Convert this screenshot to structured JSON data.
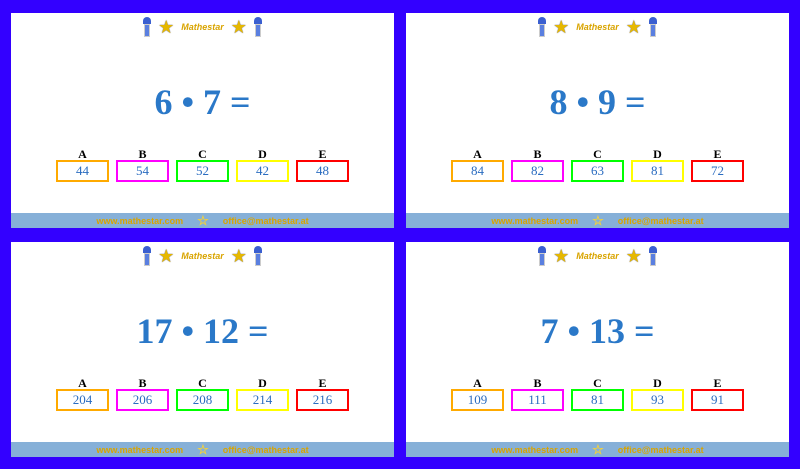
{
  "brand": "Mathestar",
  "footer": {
    "website": "www.mathestar.com",
    "email": "office@mathestar.at"
  },
  "letters": [
    "A",
    "B",
    "C",
    "D",
    "E"
  ],
  "box_colors": [
    "#ffaa00",
    "#ff00ff",
    "#00ff00",
    "#ffff00",
    "#ff0000"
  ],
  "cards": [
    {
      "equation": "6 • 7 =",
      "answers": [
        "44",
        "54",
        "52",
        "42",
        "48"
      ]
    },
    {
      "equation": "8 • 9 =",
      "answers": [
        "84",
        "82",
        "63",
        "81",
        "72"
      ]
    },
    {
      "equation": "17 • 12 =",
      "answers": [
        "204",
        "206",
        "208",
        "214",
        "216"
      ]
    },
    {
      "equation": "7 • 13 =",
      "answers": [
        "109",
        "111",
        "81",
        "93",
        "91"
      ]
    }
  ]
}
